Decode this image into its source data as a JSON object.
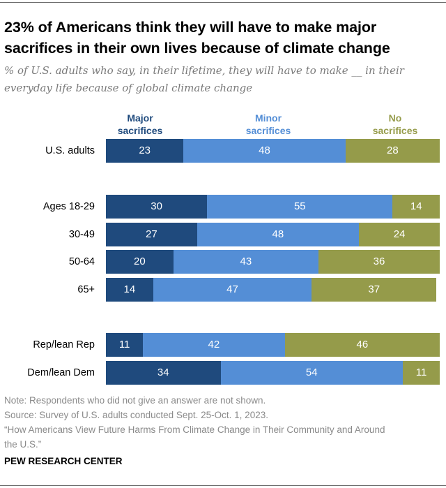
{
  "title": "23% of Americans think they will have to make major sacrifices in their own lives because of climate change",
  "subtitle": "% of U.S. adults who say, in their lifetime, they will have to make __ in their everyday life because of global climate change",
  "chart_data": {
    "type": "bar",
    "orientation": "horizontal",
    "stacked": true,
    "title": "23% of Americans think they will have to make major sacrifices in their own lives because of climate change",
    "subtitle": "% of U.S. adults who say, in their lifetime, they will have to make __ in their everyday life because of global climate change",
    "xlabel": "",
    "ylabel": "",
    "categories": [
      "U.S. adults",
      "Ages 18-29",
      "30-49",
      "50-64",
      "65+",
      "Rep/lean Rep",
      "Dem/lean Dem"
    ],
    "groups": [
      [
        "U.S. adults"
      ],
      [
        "Ages 18-29",
        "30-49",
        "50-64",
        "65+"
      ],
      [
        "Rep/lean Rep",
        "Dem/lean Dem"
      ]
    ],
    "series": [
      {
        "name": "Major sacrifices",
        "color": "#1f4a7d",
        "values": [
          23,
          30,
          27,
          20,
          14,
          11,
          34
        ]
      },
      {
        "name": "Minor sacrifices",
        "color": "#548ed6",
        "values": [
          48,
          55,
          48,
          43,
          47,
          42,
          54
        ]
      },
      {
        "name": "No sacrifices",
        "color": "#959b4a",
        "values": [
          28,
          14,
          24,
          36,
          37,
          46,
          11
        ]
      }
    ],
    "xlim": [
      0,
      100
    ],
    "grid": false,
    "legend_position": "top"
  },
  "legend": {
    "major_line1": "Major",
    "major_line2": "sacrifices",
    "minor_line1": "Minor",
    "minor_line2": "sacrifices",
    "no_line1": "No",
    "no_line2": "sacrifices"
  },
  "footer": {
    "note": "Note: Respondents who did not give an answer are not shown.",
    "source": "Source: Survey of U.S. adults conducted Sept. 25-Oct. 1, 2023.",
    "report_line1": "“How Americans View Future Harms From Climate Change in Their Community and Around",
    "report_line2": "the U.S.”",
    "brand": "PEW RESEARCH CENTER"
  }
}
